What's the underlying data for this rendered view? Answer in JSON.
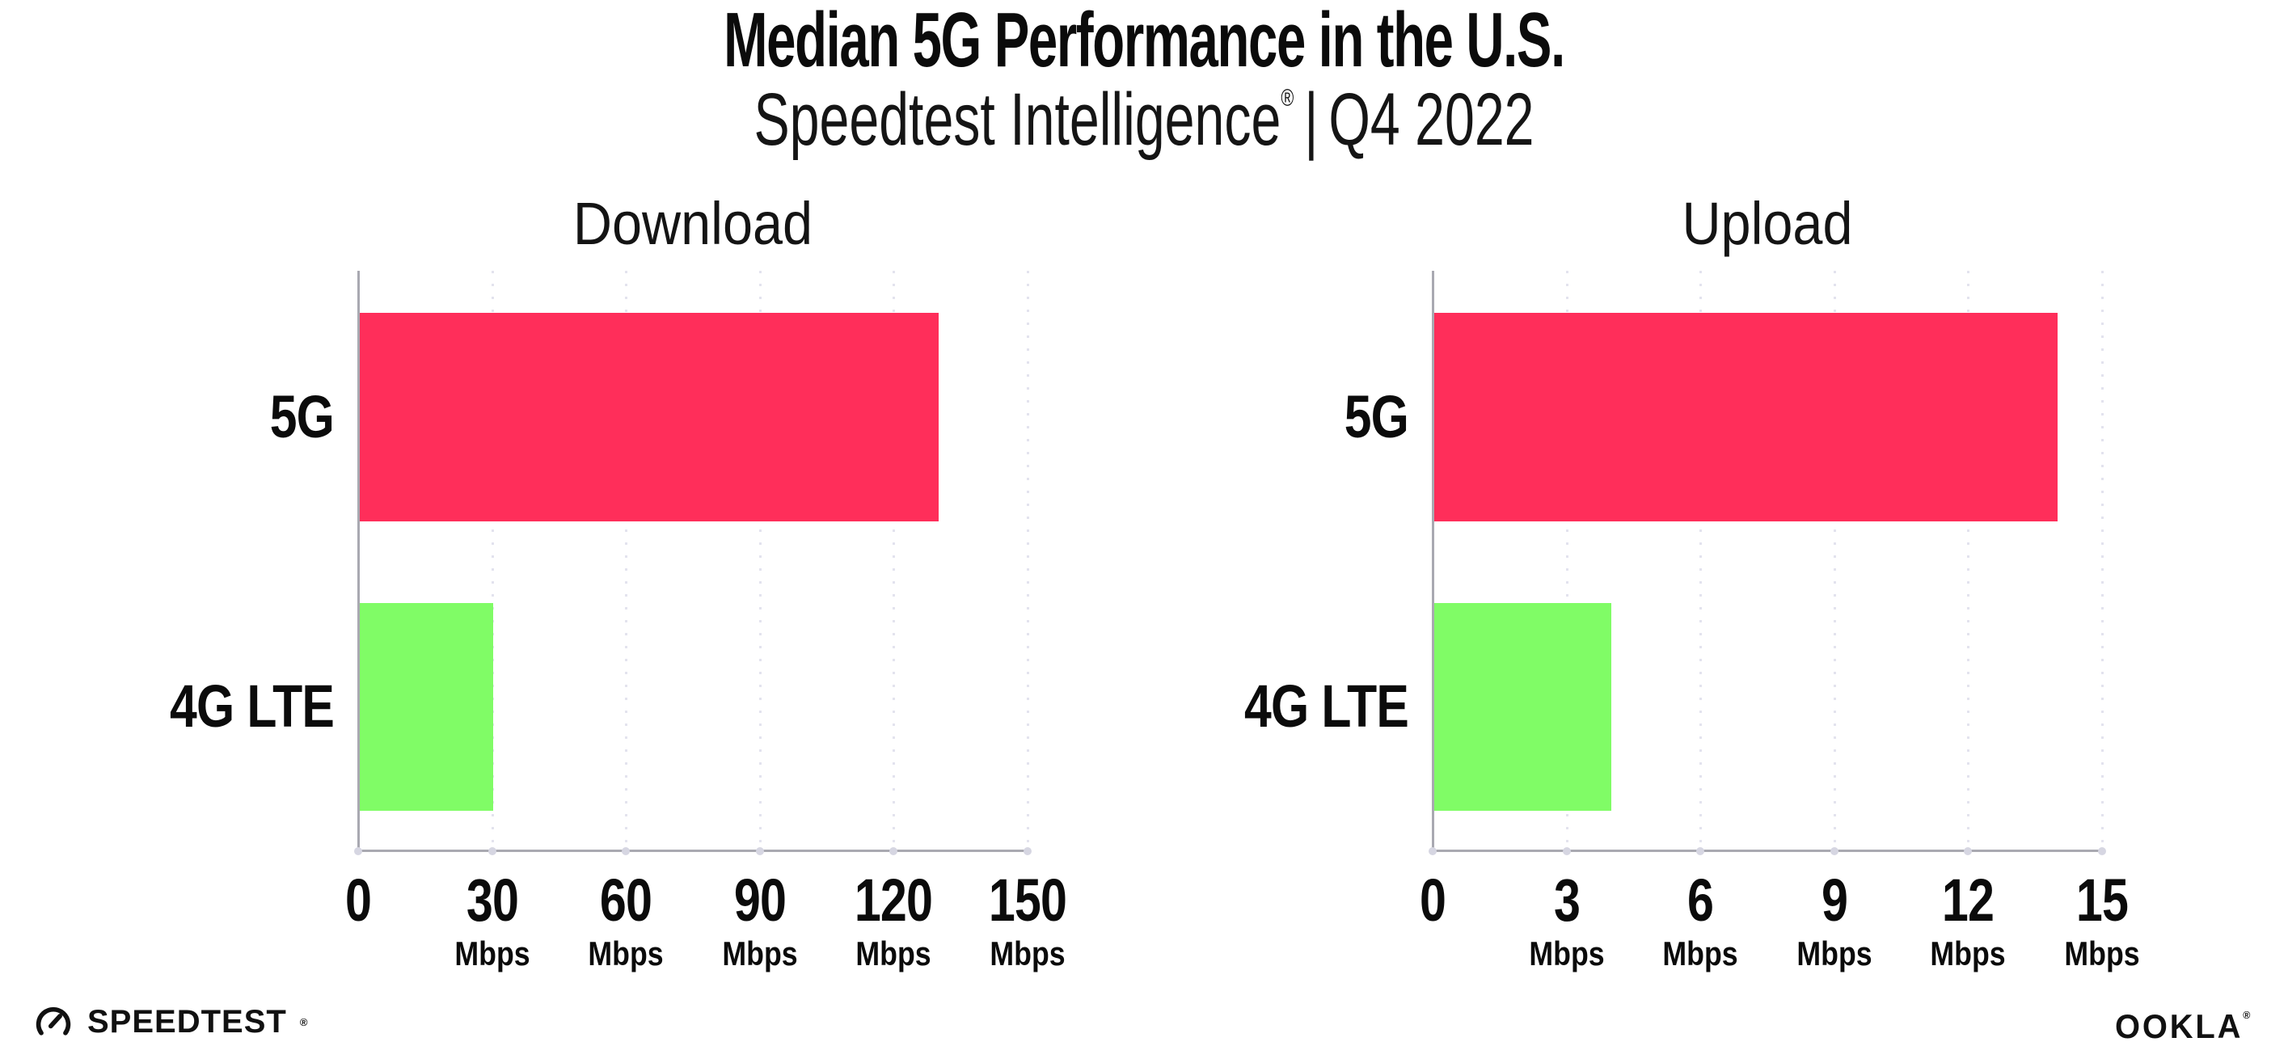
{
  "header": {
    "title": "Median 5G Performance in the U.S.",
    "subtitle_brand": "Speedtest Intelligence",
    "subtitle_registered": "®",
    "subtitle_separator": "|",
    "subtitle_period": "Q4 2022"
  },
  "chart_data": [
    {
      "type": "bar",
      "orientation": "horizontal",
      "title": "Download",
      "categories": [
        "5G",
        "4G LTE"
      ],
      "values": [
        130,
        30.3
      ],
      "unit": "Mbps",
      "xlim": [
        0,
        150
      ],
      "xticks": [
        0,
        30,
        60,
        90,
        120,
        150
      ],
      "tick_labels": [
        "0",
        "30",
        "60",
        "90",
        "120",
        "150"
      ],
      "bar_colors": [
        "#FF2E5A",
        "#80FC66"
      ],
      "grid": "dotted-vertical",
      "legend": "none"
    },
    {
      "type": "bar",
      "orientation": "horizontal",
      "title": "Upload",
      "categories": [
        "5G",
        "4G LTE"
      ],
      "values": [
        14,
        4
      ],
      "unit": "Mbps",
      "xlim": [
        0,
        15
      ],
      "xticks": [
        0,
        3,
        6,
        9,
        12,
        15
      ],
      "tick_labels": [
        "0",
        "3",
        "6",
        "9",
        "12",
        "15"
      ],
      "bar_colors": [
        "#FF2E5A",
        "#80FC66"
      ],
      "grid": "dotted-vertical",
      "legend": "none"
    }
  ],
  "footer": {
    "speedtest_label": "SPEEDTEST",
    "speedtest_registered": "®",
    "ookla_label": "OOKLA",
    "ookla_registered": "®"
  },
  "colors": {
    "bar_5g": "#FF2E5A",
    "bar_4g_lte": "#80FC66",
    "axis": "#a9a9b1",
    "gridline": "#e3e3ee",
    "text": "#0d0d0d",
    "background": "#ffffff"
  }
}
